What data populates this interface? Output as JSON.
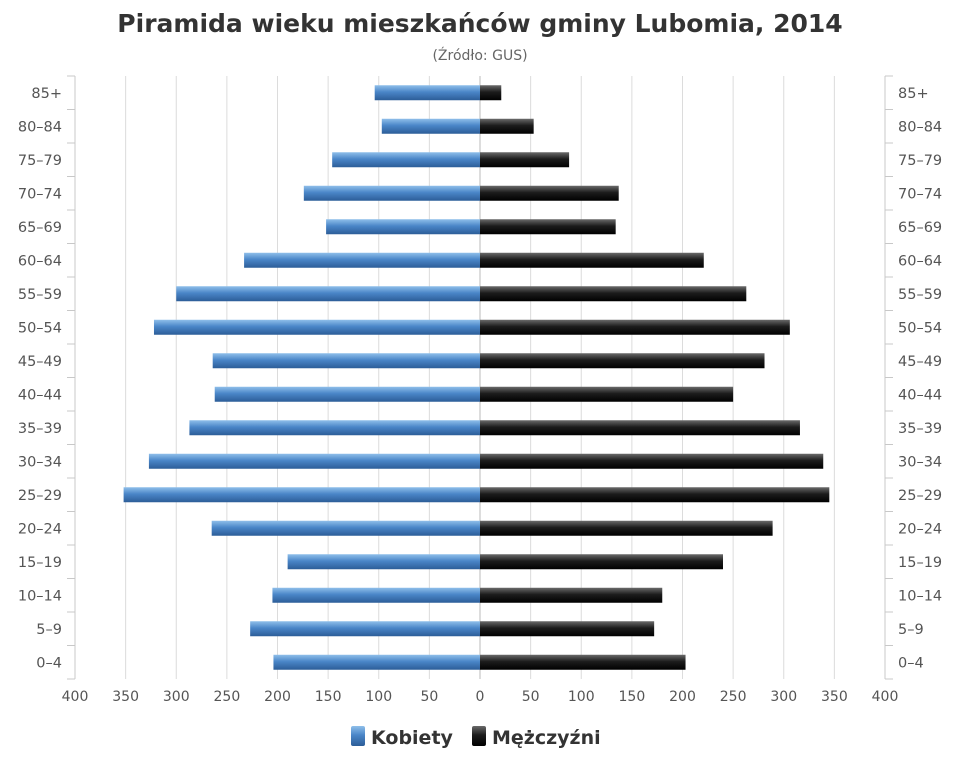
{
  "chart_data": {
    "type": "bar",
    "orientation": "horizontal",
    "title": "Piramida wieku mieszkańców gminy Lubomia, 2014",
    "subtitle": "(Źródło: GUS)",
    "categories": [
      "85+",
      "80-84",
      "75-79",
      "70-74",
      "65-69",
      "60-64",
      "55-59",
      "50-54",
      "45-49",
      "40-44",
      "35-39",
      "30-34",
      "25-29",
      "20-24",
      "15-19",
      "10-14",
      "5-9",
      "0-4"
    ],
    "category_labels": [
      "85+",
      "80–84",
      "75–79",
      "70–74",
      "65–69",
      "60–64",
      "55–59",
      "50–54",
      "45–49",
      "40–44",
      "35–39",
      "30–34",
      "25–29",
      "20–24",
      "15–19",
      "10–14",
      "5–9",
      "0–4"
    ],
    "series": [
      {
        "name": "Kobiety",
        "side": "left",
        "color": "#4a86c8",
        "values": [
          104,
          97,
          146,
          174,
          152,
          233,
          300,
          322,
          264,
          262,
          287,
          327,
          352,
          265,
          190,
          205,
          227,
          204
        ]
      },
      {
        "name": "Mężczyźni",
        "side": "right",
        "color": "#1a1a1a",
        "values": [
          21,
          53,
          88,
          137,
          134,
          221,
          263,
          306,
          281,
          250,
          316,
          339,
          345,
          289,
          240,
          180,
          172,
          203
        ]
      }
    ],
    "x_tick_labels": [
      "400",
      "350",
      "300",
      "250",
      "200",
      "150",
      "100",
      "50",
      "0",
      "50",
      "100",
      "150",
      "200",
      "250",
      "300",
      "350",
      "400"
    ],
    "xlim": [
      -400,
      400
    ],
    "grid": true,
    "legend_position": "bottom-center"
  }
}
